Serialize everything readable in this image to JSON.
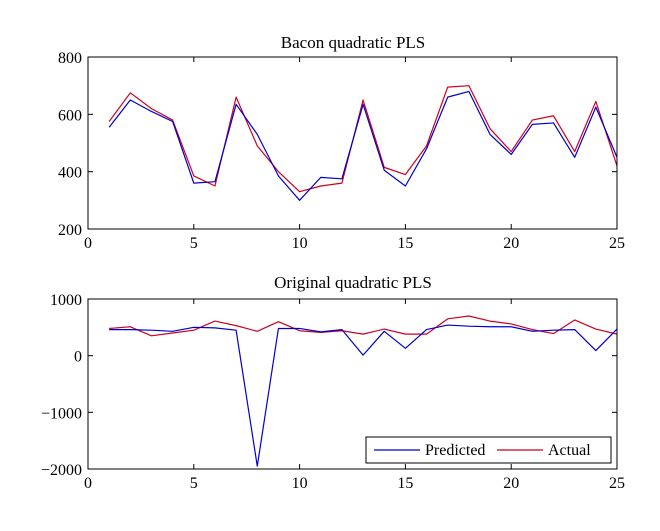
{
  "chart_data": [
    {
      "type": "line",
      "title": "Bacon quadratic PLS",
      "xlabel": "",
      "ylabel": "",
      "xlim": [
        0,
        25
      ],
      "ylim": [
        200,
        800
      ],
      "xticks": [
        0,
        5,
        10,
        15,
        20,
        25
      ],
      "yticks": [
        200,
        400,
        600,
        800
      ],
      "grid": false,
      "legend": false,
      "x": [
        1,
        2,
        3,
        4,
        5,
        6,
        7,
        8,
        9,
        10,
        11,
        12,
        13,
        14,
        15,
        16,
        17,
        18,
        19,
        20,
        21,
        22,
        23,
        24,
        25
      ],
      "series": [
        {
          "name": "Predicted",
          "color": "#0000cc",
          "values": [
            555,
            650,
            610,
            575,
            360,
            365,
            635,
            530,
            385,
            300,
            380,
            375,
            635,
            405,
            350,
            480,
            660,
            680,
            530,
            460,
            565,
            570,
            450,
            625,
            450
          ]
        },
        {
          "name": "Actual",
          "color": "#cc0022",
          "values": [
            575,
            675,
            620,
            580,
            385,
            350,
            660,
            490,
            400,
            330,
            350,
            360,
            650,
            415,
            390,
            490,
            695,
            700,
            550,
            470,
            580,
            595,
            470,
            645,
            420
          ]
        }
      ]
    },
    {
      "type": "line",
      "title": "Original quadratic PLS",
      "xlabel": "",
      "ylabel": "",
      "xlim": [
        0,
        25
      ],
      "ylim": [
        -2000,
        1000
      ],
      "xticks": [
        0,
        5,
        10,
        15,
        20,
        25
      ],
      "yticks": [
        -2000,
        -1000,
        0,
        1000
      ],
      "grid": false,
      "legend": true,
      "legend_position": "bottom-right",
      "x": [
        1,
        2,
        3,
        4,
        5,
        6,
        7,
        8,
        9,
        10,
        11,
        12,
        13,
        14,
        15,
        16,
        17,
        18,
        19,
        20,
        21,
        22,
        23,
        24,
        25
      ],
      "series": [
        {
          "name": "Predicted",
          "color": "#0000cc",
          "values": [
            460,
            460,
            450,
            430,
            500,
            490,
            450,
            -1950,
            480,
            480,
            420,
            460,
            10,
            430,
            130,
            460,
            540,
            520,
            510,
            510,
            430,
            450,
            460,
            90,
            470
          ]
        },
        {
          "name": "Actual",
          "color": "#cc0022",
          "values": [
            480,
            510,
            350,
            400,
            450,
            610,
            530,
            430,
            600,
            440,
            410,
            440,
            380,
            470,
            380,
            380,
            650,
            700,
            610,
            560,
            460,
            390,
            630,
            470,
            380
          ]
        }
      ]
    }
  ]
}
